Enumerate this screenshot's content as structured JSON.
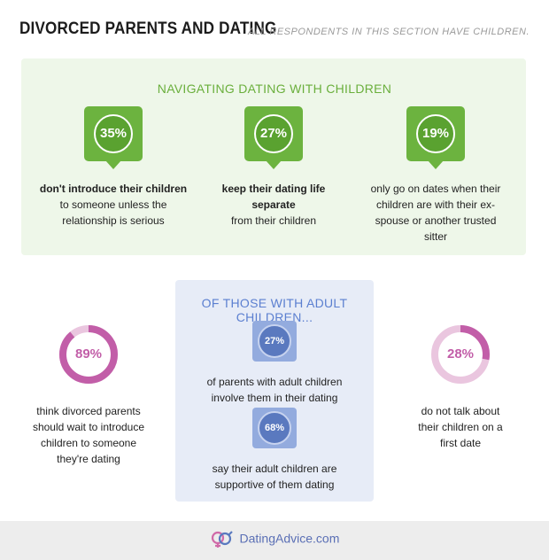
{
  "header": {
    "title": "DIVORCED PARENTS AND DATING",
    "subtitle": "ALL RESPONDENTS IN THIS SECTION HAVE CHILDREN."
  },
  "green_section": {
    "heading": "NAVIGATING DATING WITH CHILDREN",
    "stats": [
      {
        "value": "35%",
        "bold": "don't introduce their children",
        "rest": "to someone unless the relationship is serious"
      },
      {
        "value": "27%",
        "bold": "keep their dating life separate",
        "rest": "from their children"
      },
      {
        "value": "19%",
        "bold": "",
        "rest": "only go on dates when their children are with their ex-spouse or another trusted sitter"
      }
    ]
  },
  "blue_section": {
    "heading": "OF THOSE WITH ADULT CHILDREN...",
    "stats": [
      {
        "value": "27%",
        "text": "of parents with adult children involve them in their dating lives"
      },
      {
        "value": "68%",
        "text": "say their adult children are supportive of them dating"
      }
    ]
  },
  "left_donut": {
    "value": "89%",
    "percent": 89,
    "text": "think divorced parents should wait to introduce children to someone they're dating"
  },
  "right_donut": {
    "value": "28%",
    "percent": 28,
    "text": "do not talk about their children on a first date"
  },
  "footer": {
    "brand": "DatingAdvice",
    "tld": ".com"
  },
  "colors": {
    "green": "#6cb33f",
    "blue": "#5a79bf",
    "pink": "#c25ea8",
    "pink_light": "#eac6df"
  }
}
